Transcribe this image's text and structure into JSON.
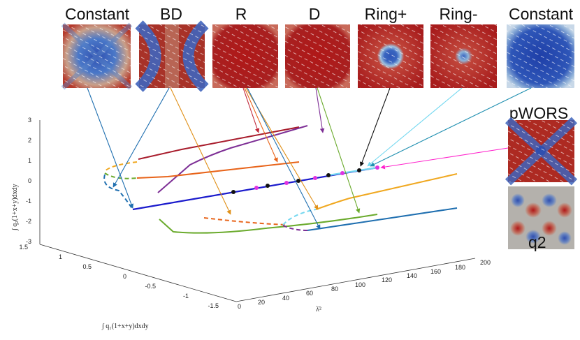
{
  "panels": {
    "constant_1": "Constant",
    "bd": "BD",
    "r": "R",
    "d": "D",
    "ring_plus": "Ring+",
    "ring_minus": "Ring-",
    "constant_2": "Constant",
    "pwors": "pWORS",
    "q2": "q2"
  },
  "axes": {
    "z_ticks": [
      "3",
      "2",
      "1",
      "0",
      "-1",
      "-2",
      "-3"
    ],
    "y_ticks": [
      "1.5",
      "1",
      "0.5",
      "0",
      "-0.5",
      "-1",
      "-1.5"
    ],
    "x_ticks": [
      "0",
      "20",
      "40",
      "60",
      "80",
      "100",
      "120",
      "140",
      "160",
      "180",
      "200"
    ],
    "z_label": "∫ q₂(1+x+y)dxdy",
    "y_label": "∫ q₁(1+x+y)dxdy",
    "x_label": "λ̄²"
  },
  "colors": {
    "nematic_high": "#b01818",
    "nematic_low": "#2f4fb0",
    "constant_branch": "#1a1acc",
    "bd_branch": "#1f6fb0",
    "r_branch": "#a81c2c",
    "d_branch": "#7d2e95",
    "ring_branch": "#e87e1a",
    "green_branch": "#6aaa2c",
    "pwors_arrow": "#ff22cc",
    "ring_minus_arrow": "#74d8f0"
  }
}
